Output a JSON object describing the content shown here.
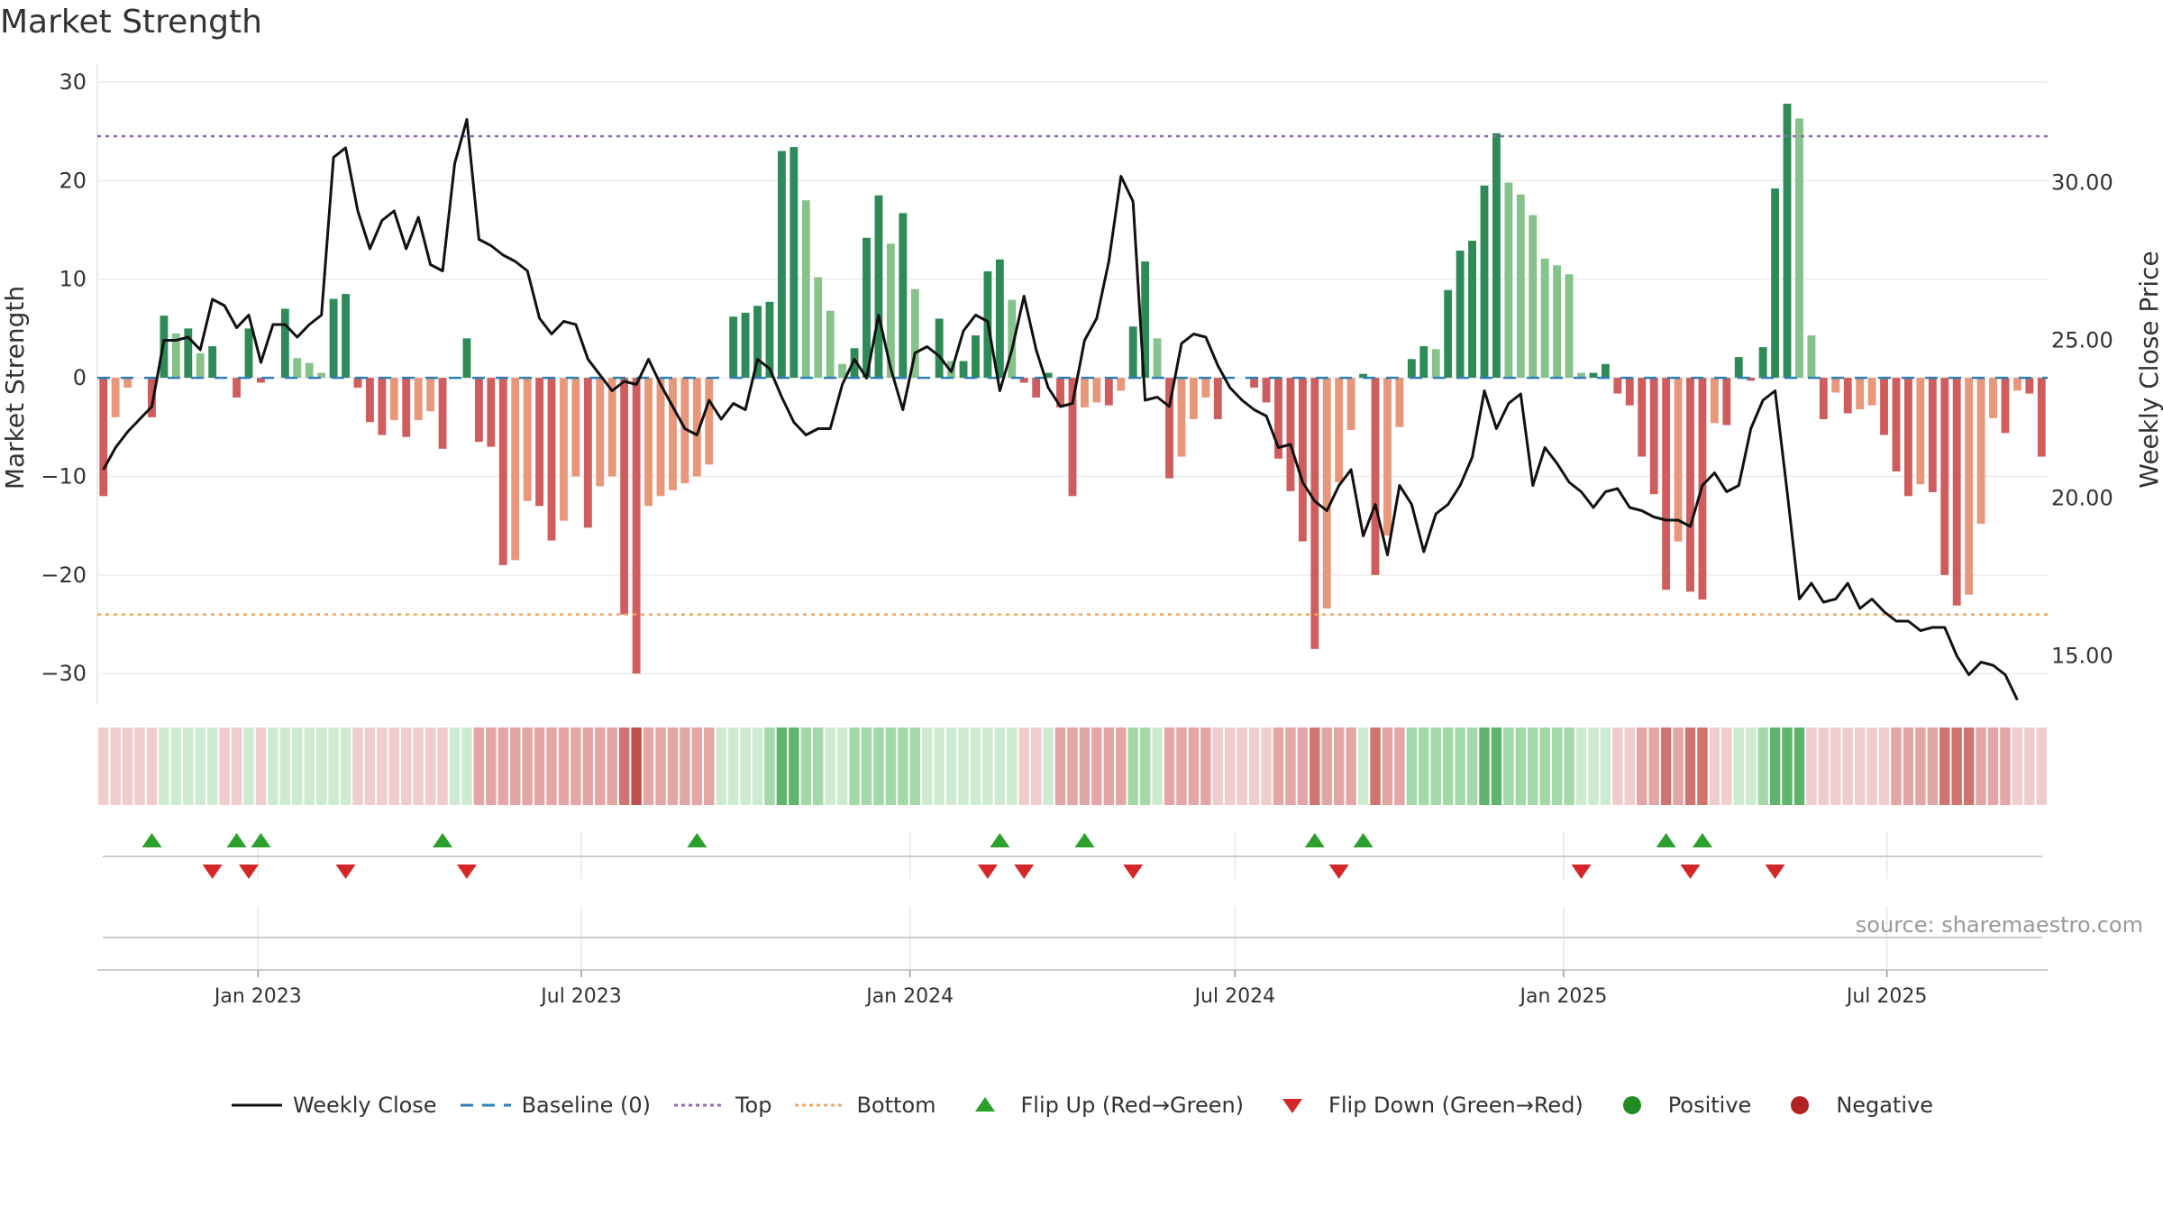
{
  "title": "Market Strength",
  "source": "source: sharemaestro.com",
  "colors": {
    "pos_dark": "#2e8b57",
    "pos_light": "#86c38a",
    "neg_dark": "#d05d5d",
    "neg_light": "#e8977a",
    "close_line": "#111111",
    "baseline": "#2c7fb8",
    "top": "#9467bd",
    "bottom": "#f4a460",
    "flip_up": "#2ca02c",
    "flip_down": "#d62728",
    "positive": "#228b22",
    "negative": "#b22222"
  },
  "legend": [
    {
      "key": "close",
      "label": "Weekly Close",
      "icon": "line-solid"
    },
    {
      "key": "baseline",
      "label": "Baseline (0)",
      "icon": "line-dashed"
    },
    {
      "key": "top",
      "label": "Top",
      "icon": "line-dotted-purple"
    },
    {
      "key": "bottom",
      "label": "Bottom",
      "icon": "line-dotted-orange"
    },
    {
      "key": "flip_up",
      "label": "Flip Up (Red→Green)",
      "icon": "triangle-up-icon"
    },
    {
      "key": "flip_down",
      "label": "Flip Down (Green→Red)",
      "icon": "triangle-down-icon"
    },
    {
      "key": "positive",
      "label": "Positive",
      "icon": "circle-green-icon"
    },
    {
      "key": "negative",
      "label": "Negative",
      "icon": "circle-red-icon"
    }
  ],
  "chart_data": {
    "type": "bar",
    "ylabel": "Market Strength",
    "y2label": "Weekly Close Price",
    "ylim": [
      -33,
      31
    ],
    "y2lim": [
      13.5,
      33.5
    ],
    "yticks": [
      30,
      20,
      10,
      0,
      -10,
      -20,
      -30
    ],
    "y2ticks": [
      "30.00",
      "25.00",
      "20.00",
      "15.00"
    ],
    "y2tick_values": [
      30,
      25,
      20,
      15
    ],
    "top_line": 24.5,
    "bottom_line": -24,
    "x_start": "2022-10-03",
    "x_end": "2025-09-29",
    "x_labels": [
      "Jan 2023",
      "Jul 2023",
      "Jan 2024",
      "Jul 2024",
      "Jan 2025",
      "Jul 2025"
    ],
    "x_label_dates": [
      "2023-01-01",
      "2023-07-01",
      "2024-01-01",
      "2024-07-01",
      "2025-01-01",
      "2025-07-01"
    ],
    "grid": true,
    "legend_position": "bottom",
    "strength": [
      -12,
      -4,
      -1,
      0,
      -4,
      6.3,
      4.5,
      5,
      2.5,
      3.2,
      0,
      -2,
      5,
      -0.5,
      0,
      7,
      2,
      1.5,
      0.5,
      8,
      8.5,
      -1,
      -4.5,
      -5.8,
      -4.3,
      -6,
      -4.3,
      -3.4,
      -7.2,
      0,
      4,
      -6.5,
      -7,
      -19,
      -18.5,
      -12.5,
      -13,
      -16.5,
      -14.5,
      -10,
      -15.2,
      -11,
      -10,
      -24,
      -30,
      -13,
      -12,
      -11.4,
      -10.7,
      -10,
      -8.8,
      0,
      6.2,
      6.6,
      7.3,
      7.7,
      23,
      23.4,
      18,
      10.2,
      6.8,
      1.4,
      3,
      14.2,
      18.5,
      13.6,
      16.7,
      9,
      0,
      6,
      1.7,
      1.7,
      4.3,
      10.8,
      12,
      7.9,
      -0.5,
      -2,
      0.5,
      -3,
      -12,
      -3,
      -2.5,
      -2.8,
      -1.3,
      5.2,
      11.8,
      4,
      -10.2,
      -8,
      -4.2,
      -2,
      -4.2,
      0,
      0,
      -1,
      -2.5,
      -8.2,
      -11.5,
      -16.6,
      -27.5,
      -23.4,
      -10.6,
      -5.3,
      0.4,
      -20,
      -16,
      -5,
      1.9,
      3.2,
      2.9,
      8.9,
      12.9,
      13.9,
      19.5,
      24.8,
      19.8,
      18.6,
      16.5,
      12.1,
      11.4,
      10.5,
      0.5,
      0.5,
      1.4,
      -1.6,
      -2.8,
      -8,
      -11.8,
      -21.5,
      -16.6,
      -21.7,
      -22.5,
      -4.6,
      -4.8,
      2.1,
      -0.3,
      3.1,
      19.2,
      27.8,
      26.3,
      4.3,
      -4.2,
      -1.5,
      -3.6,
      -3.2,
      -2.8,
      -5.8,
      -9.5,
      -12,
      -10.8,
      -11.6,
      -20,
      -23.1,
      -22,
      -14.8,
      -4.1,
      -5.6,
      -1.3,
      -1.6,
      -8
    ],
    "close": [
      20.9,
      21.6,
      22.1,
      22.5,
      22.9,
      25,
      25,
      25.1,
      24.7,
      26.3,
      26.1,
      25.4,
      25.8,
      24.3,
      25.5,
      25.5,
      25.1,
      25.5,
      25.8,
      30.8,
      31.1,
      29.1,
      27.9,
      28.8,
      29.1,
      27.9,
      28.9,
      27.4,
      27.2,
      30.6,
      32,
      28.2,
      28,
      27.7,
      27.5,
      27.2,
      25.7,
      25.2,
      25.6,
      25.5,
      24.4,
      23.9,
      23.4,
      23.7,
      23.6,
      24.4,
      23.6,
      22.9,
      22.2,
      22,
      23.1,
      22.5,
      23,
      22.8,
      24.4,
      24.1,
      23.2,
      22.4,
      22,
      22.2,
      22.2,
      23.6,
      24.4,
      23.8,
      25.8,
      24.1,
      22.8,
      24.6,
      24.8,
      24.5,
      24,
      25.3,
      25.8,
      25.6,
      23.4,
      24.7,
      26.4,
      24.7,
      23.5,
      22.9,
      23,
      25,
      25.7,
      27.5,
      30.2,
      29.4,
      23.1,
      23.2,
      22.9,
      24.9,
      25.2,
      25.1,
      24.2,
      23.5,
      23.1,
      22.8,
      22.6,
      21.6,
      21.7,
      20.5,
      19.9,
      19.6,
      20.4,
      20.9,
      18.8,
      19.8,
      18.2,
      20.4,
      19.8,
      18.3,
      19.5,
      19.8,
      20.4,
      21.3,
      23.4,
      22.2,
      23,
      23.3,
      20.4,
      21.6,
      21.1,
      20.5,
      20.2,
      19.7,
      20.2,
      20.3,
      19.7,
      19.6,
      19.4,
      19.3,
      19.3,
      19.1,
      20.4,
      20.8,
      20.2,
      20.4,
      22.2,
      23.1,
      23.4,
      20.2,
      16.8,
      17.3,
      16.7,
      16.8,
      17.3,
      16.5,
      16.8,
      16.4,
      16.1,
      16.1,
      15.8,
      15.9,
      15.9,
      15,
      14.4,
      14.8,
      14.7,
      14.4,
      13.6
    ],
    "regime_heat": [
      -1,
      -1,
      -1,
      -1,
      -1,
      1,
      1,
      1,
      1,
      1,
      -1,
      -1,
      1,
      -1,
      1,
      1,
      1,
      1,
      1,
      1,
      1,
      -1,
      -1,
      -1,
      -1,
      -1,
      -1,
      -1,
      -1,
      1,
      1,
      -2,
      -2,
      -2,
      -2,
      -2,
      -2,
      -2,
      -2,
      -2,
      -2,
      -2,
      -2,
      -3,
      -4,
      -2,
      -2,
      -2,
      -2,
      -2,
      -2,
      1,
      1,
      1,
      1,
      2,
      3,
      3,
      2,
      2,
      1,
      1,
      2,
      2,
      2,
      2,
      2,
      2,
      1,
      1,
      1,
      1,
      1,
      1,
      1,
      1,
      -1,
      -1,
      1,
      -2,
      -2,
      -2,
      -2,
      -2,
      -2,
      2,
      2,
      1,
      -2,
      -2,
      -2,
      -2,
      -1,
      -1,
      -1,
      -1,
      -1,
      -2,
      -2,
      -2,
      -3,
      -2,
      -2,
      -2,
      1,
      -3,
      -2,
      -2,
      2,
      2,
      2,
      2,
      2,
      2,
      3,
      3,
      2,
      2,
      2,
      2,
      2,
      2,
      1,
      1,
      1,
      -1,
      -1,
      -2,
      -2,
      -3,
      -2,
      -3,
      -3,
      -1,
      -1,
      1,
      1,
      2,
      3,
      3,
      3,
      -1,
      -1,
      -1,
      -1,
      -1,
      -1,
      -1,
      -2,
      -2,
      -2,
      -2,
      -3,
      -3,
      -3,
      -2,
      -2,
      -2,
      -1,
      -1,
      -1
    ],
    "flip_up_weeks": [
      4,
      11,
      13,
      28,
      49,
      74,
      81,
      100,
      104,
      129,
      132
    ],
    "flip_down_weeks": [
      9,
      12,
      20,
      30,
      73,
      76,
      85,
      102,
      122,
      131,
      138
    ]
  }
}
